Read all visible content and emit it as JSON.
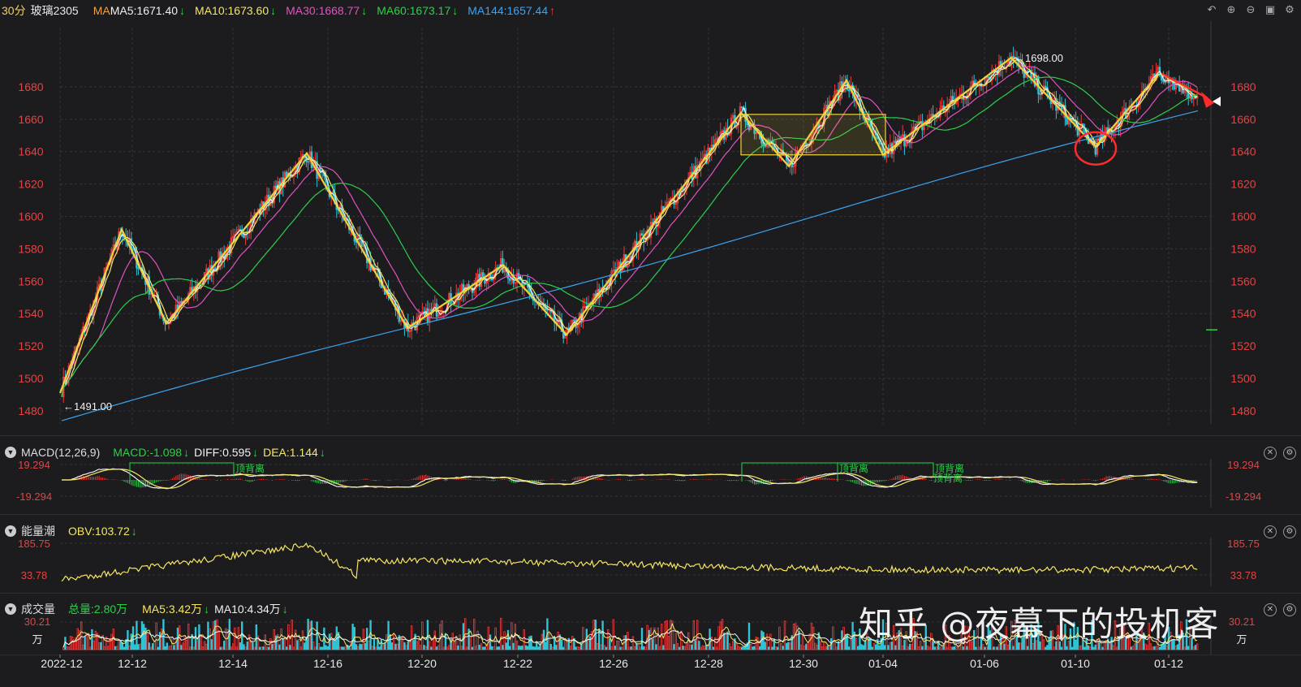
{
  "header": {
    "period": "30分",
    "symbol": "玻璃2305",
    "ma_label": "MA",
    "ma": [
      {
        "text": "MA5:1671.40",
        "arrow": "↓",
        "color": "#f0f0f0",
        "arrow_color": "#2bd04a"
      },
      {
        "text": "MA10:1673.60",
        "arrow": "↓",
        "color": "#f5e663",
        "arrow_color": "#2bd04a"
      },
      {
        "text": "MA30:1668.77",
        "arrow": "↓",
        "color": "#e053c0",
        "arrow_color": "#2bd04a"
      },
      {
        "text": "MA60:1673.17",
        "arrow": "↓",
        "color": "#2bd04a",
        "arrow_color": "#2bd04a"
      },
      {
        "text": "MA144:1657.44",
        "arrow": "↑",
        "color": "#3ba3f0",
        "arrow_color": "#f23b3b"
      }
    ]
  },
  "toolbar_icons": [
    "undo-icon",
    "zoom-in-icon",
    "zoom-out-icon",
    "layout-icon",
    "settings-icon"
  ],
  "main_chart": {
    "y_ticks": [
      "1680",
      "1660",
      "1640",
      "1620",
      "1600",
      "1580",
      "1560",
      "1540",
      "1520",
      "1500",
      "1480"
    ],
    "high_label": "←1698.00",
    "low_label": "←1491.00",
    "colors": {
      "up": "#f23b3b",
      "down": "#2ec4d6",
      "zigzag": "#f2d33b",
      "ma5": "#f0f0f0",
      "ma10": "#f5e663",
      "ma30": "#e053c0",
      "ma60": "#2bd04a",
      "ma144": "#3ba3f0",
      "circle": "#ff2a2a"
    }
  },
  "macd": {
    "name": "MACD(12,26,9)",
    "macd": "MACD:-1.098",
    "diff": "DIFF:0.595",
    "dea": "DEA:1.144",
    "ticks": [
      "19.294",
      "-19.294"
    ],
    "divergence_label": "顶背离"
  },
  "obv": {
    "name": "能量潮",
    "value": "OBV:103.72",
    "ticks": [
      "185.75",
      "33.78"
    ]
  },
  "volume": {
    "name": "成交量",
    "total": "总量:2.80万",
    "ma5": "MA5:3.42万",
    "ma10": "MA10:4.34万",
    "ticks": [
      "30.21",
      "万"
    ],
    "right_ticks": [
      "30.21",
      "万"
    ]
  },
  "x_axis": [
    "2022-12",
    "12-12",
    "12-14",
    "12-16",
    "12-20",
    "12-22",
    "12-26",
    "12-28",
    "12-30",
    "01-04",
    "01-06",
    "01-10",
    "01-12"
  ],
  "watermark": "知乎 @夜幕下的投机客"
}
